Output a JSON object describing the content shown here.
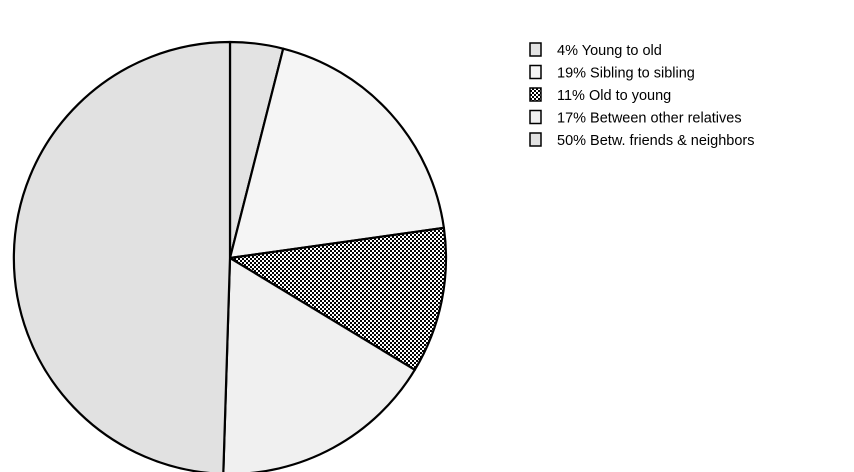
{
  "chart_data": {
    "type": "pie",
    "title": "",
    "start_angle_deg": 0,
    "direction": "clockwise",
    "slices": [
      {
        "label": "4% Young to old",
        "value": 4,
        "fill": "#e3e3e3",
        "pattern": "solid"
      },
      {
        "label": "19% Sibling to sibling",
        "value": 19,
        "fill": "#f5f5f5",
        "pattern": "solid"
      },
      {
        "label": "11% Old to young",
        "value": 11,
        "fill": "#ffffff",
        "pattern": "checker"
      },
      {
        "label": "17% Between other relatives",
        "value": 17,
        "fill": "#f0f0f0",
        "pattern": "solid"
      },
      {
        "label": "50% Betw. friends & neighbors",
        "value": 50,
        "fill": "#e1e1e1",
        "pattern": "solid"
      }
    ],
    "legend_position": "top-right"
  }
}
